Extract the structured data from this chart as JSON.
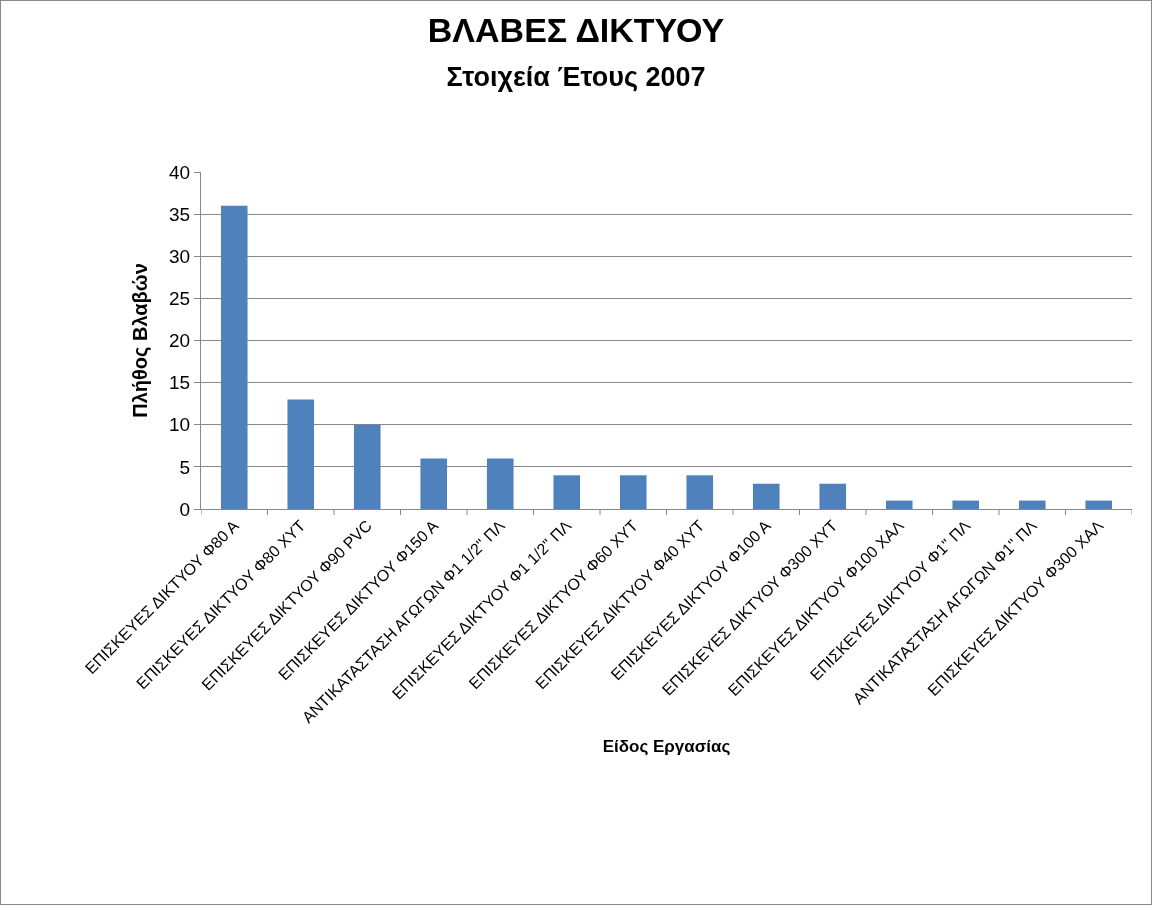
{
  "chart_data": {
    "type": "bar",
    "title": "ΒΛΑΒΕΣ ΔΙΚΤΥΟΥ",
    "subtitle": "Στοιχεία Έτους 2007",
    "xlabel": "Είδος Εργασίας",
    "ylabel": "Πλήθος Βλαβών",
    "categories": [
      "ΕΠΙΣΚΕΥΕΣ ΔΙΚΤΥΟΥ Φ80 Α",
      "ΕΠΙΣΚΕΥΕΣ ΔΙΚΤΥΟΥ Φ80 ΧΥΤ",
      "ΕΠΙΣΚΕΥΕΣ ΔΙΚΤΥΟΥ Φ90 PVC",
      "ΕΠΙΣΚΕΥΕΣ ΔΙΚΤΥΟΥ Φ150 Α",
      "ΑΝΤΙΚΑΤΑΣΤΑΣΗ ΑΓΩΓΩΝ Φ1 1/2\" ΠΛ",
      "ΕΠΙΣΚΕΥΕΣ ΔΙΚΤΥΟΥ Φ1 1/2\" ΠΛ",
      "ΕΠΙΣΚΕΥΕΣ ΔΙΚΤΥΟΥ Φ60 ΧΥΤ",
      "ΕΠΙΣΚΕΥΕΣ ΔΙΚΤΥΟΥ Φ40 ΧΥΤ",
      "ΕΠΙΣΚΕΥΕΣ ΔΙΚΤΥΟΥ Φ100 Α",
      "ΕΠΙΣΚΕΥΕΣ ΔΙΚΤΥΟΥ Φ300 ΧΥΤ",
      "ΕΠΙΣΚΕΥΕΣ ΔΙΚΤΥΟΥ Φ100 ΧΑΛ",
      "ΕΠΙΣΚΕΥΕΣ ΔΙΚΤΥΟΥ Φ1\" ΠΛ",
      "ΑΝΤΙΚΑΤΑΣΤΑΣΗ ΑΓΩΓΩΝ Φ1\" ΠΛ",
      "ΕΠΙΣΚΕΥΕΣ ΔΙΚΤΥΟΥ Φ300 ΧΑΛ"
    ],
    "values": [
      36,
      13,
      10,
      6,
      6,
      4,
      4,
      4,
      3,
      3,
      1,
      1,
      1,
      1
    ],
    "color": "#4f81bd",
    "ylim": [
      0,
      40
    ],
    "yticks": [
      0,
      5,
      10,
      15,
      20,
      25,
      30,
      35,
      40
    ],
    "grid": "y"
  }
}
